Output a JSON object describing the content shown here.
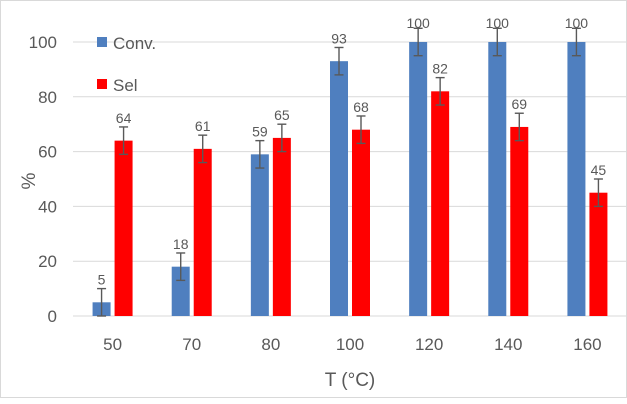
{
  "chart_data": {
    "type": "bar",
    "title": "",
    "xlabel": "T (°C)",
    "ylabel": "%",
    "categories": [
      "50",
      "70",
      "80",
      "100",
      "120",
      "140",
      "160"
    ],
    "ylim": [
      0,
      100
    ],
    "yticks": [
      0,
      20,
      40,
      60,
      80,
      100
    ],
    "grid": "horizontal",
    "legend_position": "top-left",
    "error_bar": 5,
    "series": [
      {
        "name": "Conv.",
        "color": "#4F7FBF",
        "values": [
          5,
          18,
          59,
          93,
          100,
          100,
          100
        ]
      },
      {
        "name": "Sel",
        "color": "#FF0000",
        "values": [
          64,
          61,
          65,
          68,
          82,
          69,
          45
        ]
      }
    ]
  }
}
